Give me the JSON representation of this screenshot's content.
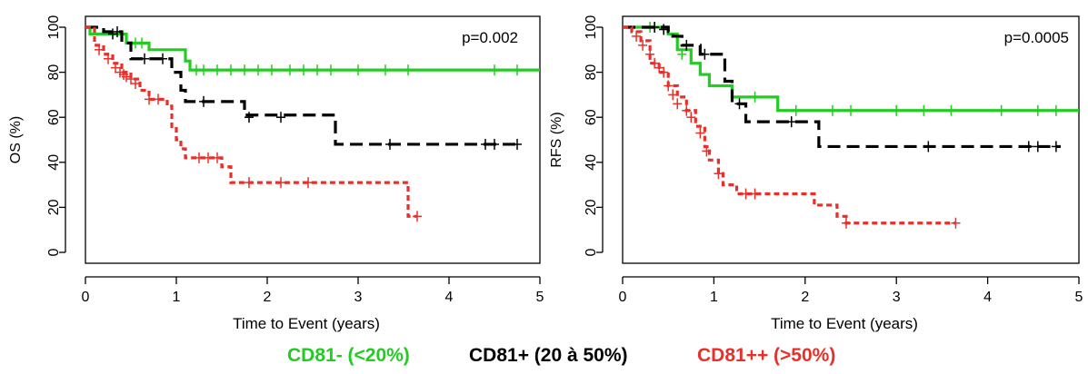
{
  "legend": {
    "green": {
      "label": "CD81- (<20%)",
      "color": "#22cc22"
    },
    "black": {
      "label": "CD81+ (20 à 50%)",
      "color": "#000000"
    },
    "red": {
      "label": "CD81++ (>50%)",
      "color": "#e8302a"
    }
  },
  "chart_data": [
    {
      "type": "line",
      "subtype": "kaplan-meier",
      "ylabel": "OS (%)",
      "xlabel": "Time to Event (years)",
      "annotation": "p=0.002",
      "xlim": [
        0,
        5
      ],
      "ylim": [
        0,
        100
      ],
      "xticks": [
        0,
        1,
        2,
        3,
        4,
        5
      ],
      "yticks": [
        0,
        20,
        40,
        60,
        80,
        100
      ],
      "series": [
        {
          "key": "green",
          "color": "#22cc22",
          "dash": "solid",
          "points": [
            [
              0,
              100
            ],
            [
              0.05,
              97
            ],
            [
              0.45,
              93
            ],
            [
              0.7,
              90
            ],
            [
              1.1,
              85
            ],
            [
              1.15,
              81
            ],
            [
              5,
              81
            ]
          ],
          "censors": [
            [
              0.55,
              93
            ],
            [
              0.62,
              93
            ],
            [
              1.22,
              81
            ],
            [
              1.3,
              81
            ],
            [
              1.45,
              81
            ],
            [
              1.6,
              81
            ],
            [
              1.75,
              81
            ],
            [
              1.9,
              81
            ],
            [
              2.05,
              81
            ],
            [
              2.25,
              81
            ],
            [
              2.4,
              81
            ],
            [
              2.55,
              81
            ],
            [
              2.7,
              81
            ],
            [
              3.0,
              81
            ],
            [
              3.3,
              81
            ],
            [
              3.55,
              81
            ],
            [
              4.5,
              81
            ],
            [
              4.75,
              81
            ]
          ]
        },
        {
          "key": "black",
          "color": "#000000",
          "dash": "dashed",
          "points": [
            [
              0,
              100
            ],
            [
              0.2,
              98
            ],
            [
              0.4,
              93
            ],
            [
              0.5,
              86
            ],
            [
              0.95,
              80
            ],
            [
              1.05,
              72
            ],
            [
              1.1,
              67
            ],
            [
              1.75,
              61
            ],
            [
              2.75,
              48
            ],
            [
              4.8,
              48
            ]
          ],
          "censors": [
            [
              0.3,
              97
            ],
            [
              0.35,
              98
            ],
            [
              0.65,
              86
            ],
            [
              0.85,
              86
            ],
            [
              1.3,
              67
            ],
            [
              1.8,
              60
            ],
            [
              2.15,
              60
            ],
            [
              3.35,
              48
            ],
            [
              4.4,
              48
            ],
            [
              4.5,
              48
            ],
            [
              4.75,
              48
            ]
          ]
        },
        {
          "key": "red",
          "color": "#e8302a",
          "dash": "dotted",
          "points": [
            [
              0,
              100
            ],
            [
              0.1,
              92
            ],
            [
              0.2,
              88
            ],
            [
              0.3,
              84
            ],
            [
              0.4,
              80
            ],
            [
              0.5,
              77
            ],
            [
              0.6,
              72
            ],
            [
              0.7,
              68
            ],
            [
              0.9,
              65
            ],
            [
              0.95,
              55
            ],
            [
              1.0,
              50
            ],
            [
              1.05,
              46
            ],
            [
              1.1,
              42
            ],
            [
              1.5,
              38
            ],
            [
              1.6,
              31
            ],
            [
              3.5,
              31
            ],
            [
              3.55,
              16
            ],
            [
              3.65,
              16
            ]
          ],
          "censors": [
            [
              0.15,
              90
            ],
            [
              0.25,
              86
            ],
            [
              0.33,
              82
            ],
            [
              0.38,
              80
            ],
            [
              0.42,
              79
            ],
            [
              0.45,
              78
            ],
            [
              0.5,
              77
            ],
            [
              0.55,
              75
            ],
            [
              0.7,
              68
            ],
            [
              0.8,
              68
            ],
            [
              1.25,
              42
            ],
            [
              1.35,
              42
            ],
            [
              1.45,
              42
            ],
            [
              1.8,
              31
            ],
            [
              2.15,
              31
            ],
            [
              2.45,
              31
            ],
            [
              3.65,
              16
            ]
          ]
        }
      ]
    },
    {
      "type": "line",
      "subtype": "kaplan-meier",
      "ylabel": "RFS (%)",
      "xlabel": "Time to Event (years)",
      "annotation": "p=0.0005",
      "xlim": [
        0,
        5
      ],
      "ylim": [
        0,
        100
      ],
      "xticks": [
        0,
        1,
        2,
        3,
        4,
        5
      ],
      "yticks": [
        0,
        20,
        40,
        60,
        80,
        100
      ],
      "series": [
        {
          "key": "green",
          "color": "#22cc22",
          "dash": "solid",
          "points": [
            [
              0,
              100
            ],
            [
              0.5,
              97
            ],
            [
              0.6,
              90
            ],
            [
              0.75,
              84
            ],
            [
              0.85,
              79
            ],
            [
              0.95,
              74
            ],
            [
              1.2,
              69
            ],
            [
              1.7,
              63
            ],
            [
              5,
              63
            ]
          ],
          "censors": [
            [
              0.3,
              100
            ],
            [
              0.35,
              100
            ],
            [
              0.45,
              99
            ],
            [
              0.65,
              88
            ],
            [
              1.45,
              69
            ],
            [
              1.9,
              63
            ],
            [
              2.3,
              63
            ],
            [
              2.5,
              63
            ],
            [
              3.0,
              63
            ],
            [
              3.3,
              63
            ],
            [
              3.6,
              63
            ],
            [
              4.15,
              63
            ],
            [
              4.55,
              63
            ],
            [
              4.75,
              63
            ]
          ]
        },
        {
          "key": "black",
          "color": "#000000",
          "dash": "dashed",
          "points": [
            [
              0,
              100
            ],
            [
              0.5,
              98
            ],
            [
              0.55,
              96
            ],
            [
              0.65,
              92
            ],
            [
              0.85,
              88
            ],
            [
              1.0,
              88
            ],
            [
              1.12,
              76
            ],
            [
              1.2,
              66
            ],
            [
              1.35,
              58
            ],
            [
              2.15,
              47
            ],
            [
              4.8,
              47
            ]
          ],
          "censors": [
            [
              0.35,
              100
            ],
            [
              0.45,
              99
            ],
            [
              0.7,
              92
            ],
            [
              0.9,
              88
            ],
            [
              1.28,
              66
            ],
            [
              1.85,
              58
            ],
            [
              3.35,
              47
            ],
            [
              4.45,
              47
            ],
            [
              4.55,
              47
            ],
            [
              4.75,
              47
            ]
          ]
        },
        {
          "key": "red",
          "color": "#e8302a",
          "dash": "dotted",
          "points": [
            [
              0,
              100
            ],
            [
              0.1,
              98
            ],
            [
              0.2,
              94
            ],
            [
              0.3,
              84
            ],
            [
              0.4,
              80
            ],
            [
              0.5,
              74
            ],
            [
              0.6,
              69
            ],
            [
              0.7,
              63
            ],
            [
              0.8,
              56
            ],
            [
              0.9,
              47
            ],
            [
              0.95,
              41
            ],
            [
              1.05,
              35
            ],
            [
              1.1,
              30
            ],
            [
              1.25,
              26
            ],
            [
              2.1,
              21
            ],
            [
              2.35,
              16
            ],
            [
              2.45,
              13
            ],
            [
              3.65,
              13
            ]
          ],
          "censors": [
            [
              0.15,
              96
            ],
            [
              0.22,
              92
            ],
            [
              0.3,
              88
            ],
            [
              0.35,
              84
            ],
            [
              0.4,
              82
            ],
            [
              0.45,
              80
            ],
            [
              0.5,
              74
            ],
            [
              0.55,
              70
            ],
            [
              0.6,
              66
            ],
            [
              0.7,
              63
            ],
            [
              0.75,
              60
            ],
            [
              0.85,
              53
            ],
            [
              0.92,
              45
            ],
            [
              1.05,
              35
            ],
            [
              1.35,
              26
            ],
            [
              1.45,
              26
            ],
            [
              2.45,
              13
            ],
            [
              3.65,
              13
            ]
          ]
        }
      ]
    }
  ]
}
